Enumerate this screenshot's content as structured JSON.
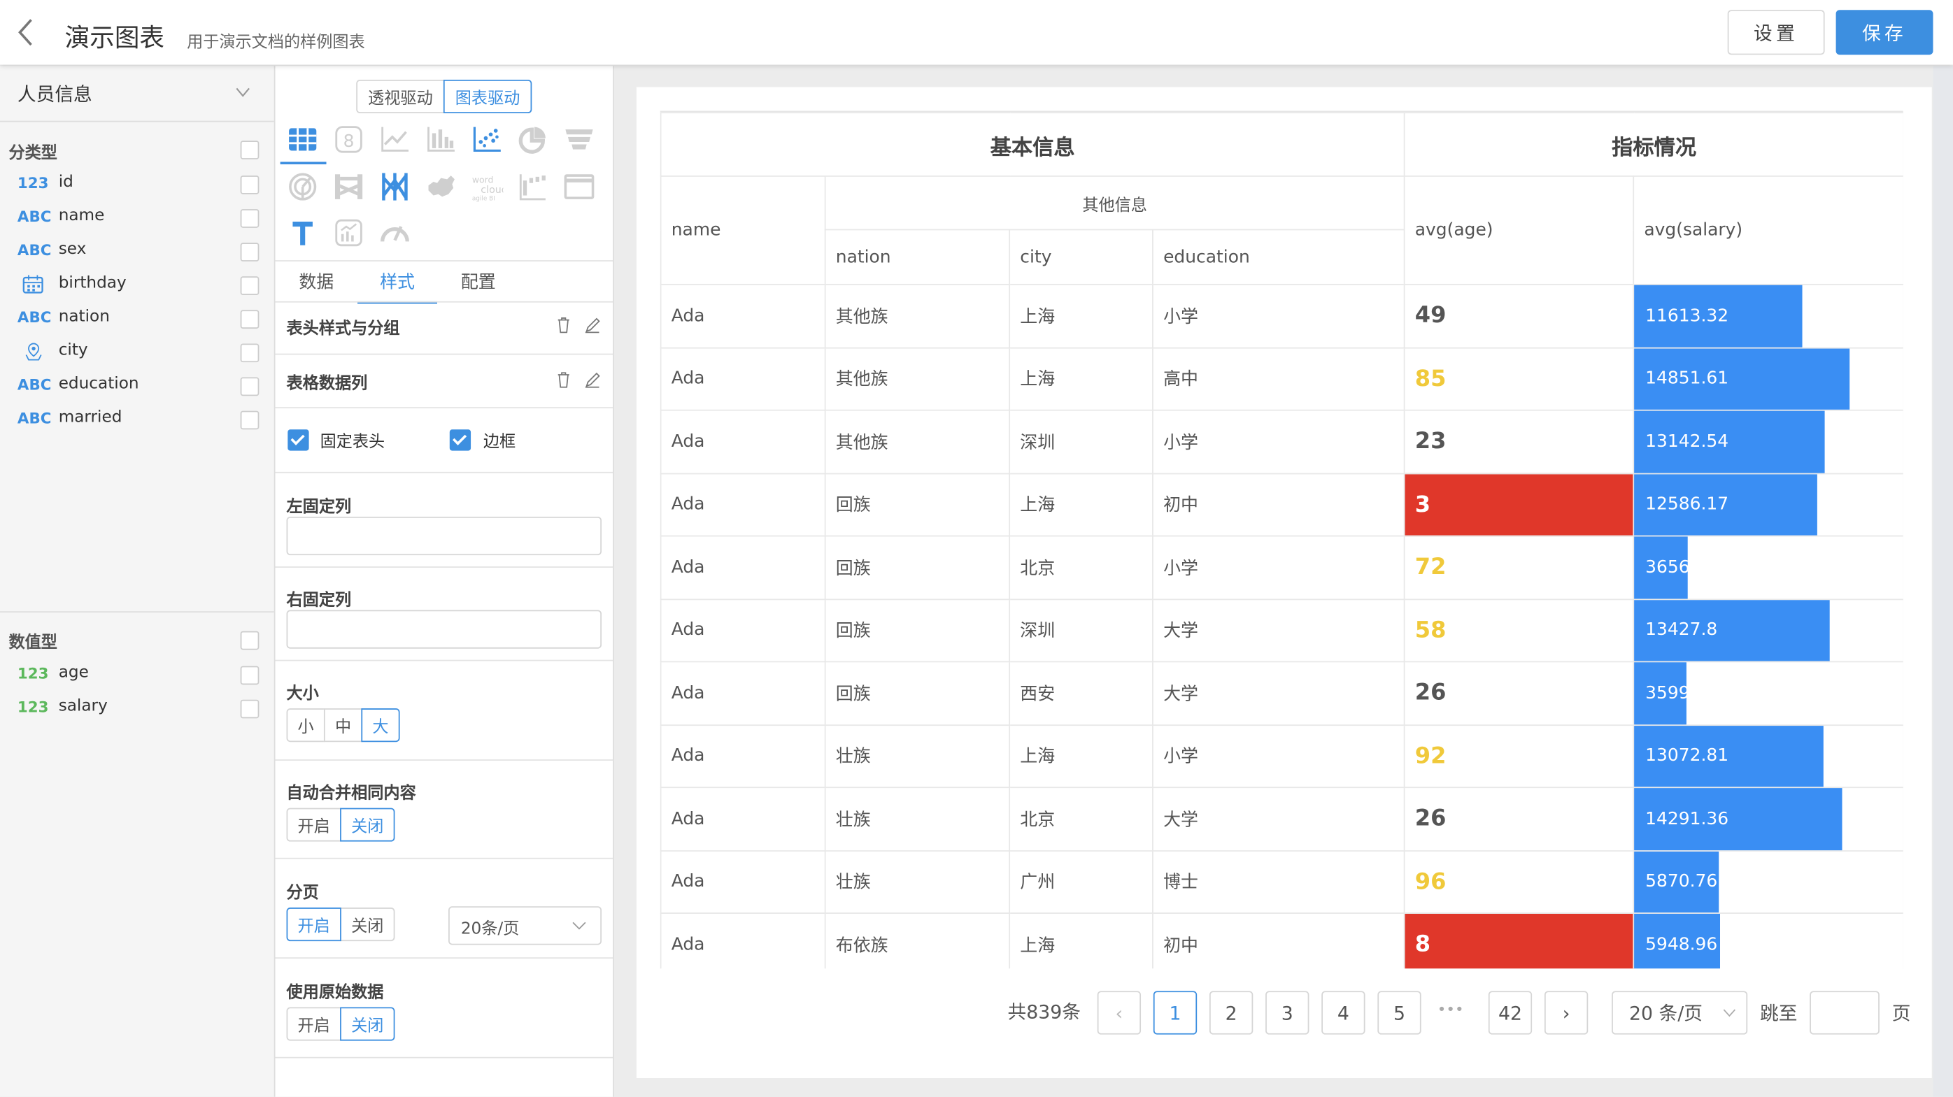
{
  "header": {
    "title": "演示图表",
    "subtitle": "用于演示文档的样例图表",
    "settings_label": "设置",
    "save_label": "保存"
  },
  "left": {
    "dataset": "人员信息",
    "category_section": "分类型",
    "category_fields": [
      {
        "type": "123",
        "label": "id",
        "icon": "number-icon",
        "color": "#3d8fe0"
      },
      {
        "type": "ABC",
        "label": "name",
        "icon": "text-icon",
        "color": "#3d8fe0"
      },
      {
        "type": "ABC",
        "label": "sex",
        "icon": "text-icon",
        "color": "#3d8fe0"
      },
      {
        "type": "",
        "label": "birthday",
        "icon": "calendar-icon",
        "color": "#3d8fe0"
      },
      {
        "type": "ABC",
        "label": "nation",
        "icon": "text-icon",
        "color": "#3d8fe0"
      },
      {
        "type": "",
        "label": "city",
        "icon": "location-icon",
        "color": "#3d8fe0"
      },
      {
        "type": "ABC",
        "label": "education",
        "icon": "text-icon",
        "color": "#3d8fe0"
      },
      {
        "type": "ABC",
        "label": "married",
        "icon": "text-icon",
        "color": "#3d8fe0"
      }
    ],
    "numeric_section": "数值型",
    "numeric_fields": [
      {
        "type": "123",
        "label": "age",
        "icon": "number-icon",
        "color": "#5cb85c"
      },
      {
        "type": "123",
        "label": "salary",
        "icon": "number-icon",
        "color": "#5cb85c"
      }
    ]
  },
  "mid": {
    "mode_tabs": [
      "透视驱动",
      "图表驱动"
    ],
    "active_mode": 1,
    "chart_types": [
      {
        "name": "table-chart-icon",
        "active": true,
        "selected": true
      },
      {
        "name": "number-card-icon",
        "active": false
      },
      {
        "name": "line-chart-icon",
        "active": false
      },
      {
        "name": "bar-chart-icon",
        "active": false
      },
      {
        "name": "scatter-chart-icon",
        "active": true
      },
      {
        "name": "pie-chart-icon",
        "active": false
      },
      {
        "name": "funnel-chart-icon",
        "active": false
      },
      {
        "name": "radar-chart-icon",
        "active": false
      },
      {
        "name": "sankey-chart-icon",
        "active": false
      },
      {
        "name": "parallel-chart-icon",
        "active": true
      },
      {
        "name": "china-map-icon",
        "active": false
      },
      {
        "name": "word-cloud-icon",
        "active": false
      },
      {
        "name": "waterfall-chart-icon",
        "active": false
      },
      {
        "name": "iframe-icon",
        "active": false
      },
      {
        "name": "text-chart-icon",
        "active": true
      },
      {
        "name": "kpi-chart-icon",
        "active": false
      },
      {
        "name": "gauge-chart-icon",
        "active": false
      }
    ],
    "tabs": [
      "数据",
      "样式",
      "配置"
    ],
    "active_tab": 1,
    "header_style_label": "表头样式与分组",
    "data_columns_label": "表格数据列",
    "fixed_header_label": "固定表头",
    "fixed_header_checked": true,
    "border_label": "边框",
    "border_checked": true,
    "left_fixed_label": "左固定列",
    "left_fixed_value": "",
    "right_fixed_label": "右固定列",
    "right_fixed_value": "",
    "size_label": "大小",
    "size_options": [
      "小",
      "中",
      "大"
    ],
    "size_selected": 2,
    "merge_label": "自动合并相同内容",
    "merge_options": [
      "开启",
      "关闭"
    ],
    "merge_selected": 1,
    "paging_label": "分页",
    "paging_options": [
      "开启",
      "关闭"
    ],
    "paging_selected": 0,
    "page_size_value": "20条/页",
    "raw_data_label": "使用原始数据",
    "raw_data_options": [
      "开启",
      "关闭"
    ],
    "raw_data_selected": 1
  },
  "table": {
    "group_basic": "基本信息",
    "group_metric": "指标情况",
    "group_other": "其他信息",
    "columns": [
      "name",
      "nation",
      "city",
      "education",
      "avg(age)",
      "avg(salary)"
    ],
    "rows": [
      {
        "name": "Ada",
        "nation": "其他族",
        "city": "上海",
        "education": "小学",
        "age": "49",
        "age_style": "normal",
        "salary": "11613.32"
      },
      {
        "name": "Ada",
        "nation": "其他族",
        "city": "上海",
        "education": "高中",
        "age": "85",
        "age_style": "warn",
        "salary": "14851.61"
      },
      {
        "name": "Ada",
        "nation": "其他族",
        "city": "深圳",
        "education": "小学",
        "age": "23",
        "age_style": "normal",
        "salary": "13142.54"
      },
      {
        "name": "Ada",
        "nation": "回族",
        "city": "上海",
        "education": "初中",
        "age": "3",
        "age_style": "bad",
        "salary": "12586.17"
      },
      {
        "name": "Ada",
        "nation": "回族",
        "city": "北京",
        "education": "小学",
        "age": "72",
        "age_style": "warn",
        "salary": "3656"
      },
      {
        "name": "Ada",
        "nation": "回族",
        "city": "深圳",
        "education": "大学",
        "age": "58",
        "age_style": "warn",
        "salary": "13427.8"
      },
      {
        "name": "Ada",
        "nation": "回族",
        "city": "西安",
        "education": "大学",
        "age": "26",
        "age_style": "normal",
        "salary": "3599"
      },
      {
        "name": "Ada",
        "nation": "壮族",
        "city": "上海",
        "education": "小学",
        "age": "92",
        "age_style": "warn",
        "salary": "13072.81"
      },
      {
        "name": "Ada",
        "nation": "壮族",
        "city": "北京",
        "education": "大学",
        "age": "26",
        "age_style": "normal",
        "salary": "14291.36"
      },
      {
        "name": "Ada",
        "nation": "壮族",
        "city": "广州",
        "education": "博士",
        "age": "96",
        "age_style": "warn",
        "salary": "5870.76"
      },
      {
        "name": "Ada",
        "nation": "布依族",
        "city": "上海",
        "education": "初中",
        "age": "8",
        "age_style": "bad",
        "salary": "5948.96"
      }
    ],
    "colors": {
      "bar": "#3a8ef3",
      "warn": "#f0c93a",
      "bad": "#e0372a"
    }
  },
  "pager": {
    "total": "共839条",
    "pages": [
      "1",
      "2",
      "3",
      "4",
      "5"
    ],
    "current": "1",
    "ellipsis": "•••",
    "last": "42",
    "prev": "‹",
    "next": "›",
    "page_size": "20 条/页",
    "jump_label": "跳至",
    "jump_value": "",
    "page_suffix": "页"
  }
}
